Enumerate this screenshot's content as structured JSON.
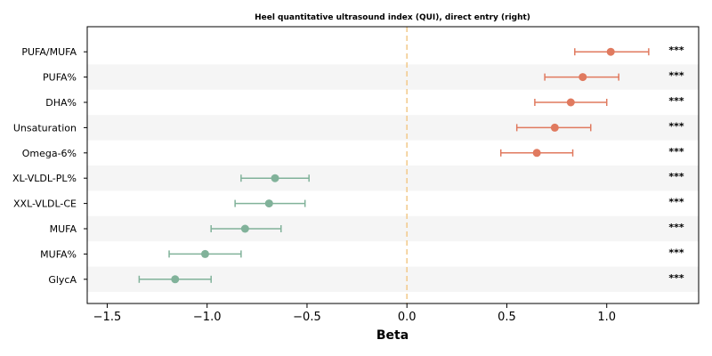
{
  "chart_data": {
    "type": "scatter",
    "title": "Heel quantitative ultrasound index (QUI), direct entry (right)",
    "xlabel": "Beta",
    "ylabel": "",
    "xlim": [
      -1.6,
      1.46
    ],
    "xticks": [
      -1.5,
      -1.0,
      -0.5,
      0.0,
      0.5,
      1.0
    ],
    "xtick_labels": [
      "−1.5",
      "−1.0",
      "−0.5",
      "0.0",
      "0.5",
      "1.0"
    ],
    "reference_line": 0,
    "grid": false,
    "points": [
      {
        "label": "PUFA/MUFA",
        "beta": 1.02,
        "ci": [
          0.84,
          1.21
        ],
        "sig": "***"
      },
      {
        "label": "PUFA%",
        "beta": 0.88,
        "ci": [
          0.69,
          1.06
        ],
        "sig": "***"
      },
      {
        "label": "DHA%",
        "beta": 0.82,
        "ci": [
          0.64,
          1.0
        ],
        "sig": "***"
      },
      {
        "label": "Unsaturation",
        "beta": 0.74,
        "ci": [
          0.55,
          0.92
        ],
        "sig": "***"
      },
      {
        "label": "Omega-6%",
        "beta": 0.65,
        "ci": [
          0.47,
          0.83
        ],
        "sig": "***"
      },
      {
        "label": "XL-VLDL-PL%",
        "beta": -0.66,
        "ci": [
          -0.83,
          -0.49
        ],
        "sig": "***"
      },
      {
        "label": "XXL-VLDL-CE",
        "beta": -0.69,
        "ci": [
          -0.86,
          -0.51
        ],
        "sig": "***"
      },
      {
        "label": "MUFA",
        "beta": -0.81,
        "ci": [
          -0.98,
          -0.63
        ],
        "sig": "***"
      },
      {
        "label": "MUFA%",
        "beta": -1.01,
        "ci": [
          -1.19,
          -0.83
        ],
        "sig": "***"
      },
      {
        "label": "GlycA",
        "beta": -1.16,
        "ci": [
          -1.34,
          -0.98
        ],
        "sig": "***"
      }
    ],
    "colors": {
      "positive": "#e07a5f",
      "negative": "#81b29a",
      "reference": "#f2cc8f",
      "band": "#f5f5f5"
    }
  }
}
